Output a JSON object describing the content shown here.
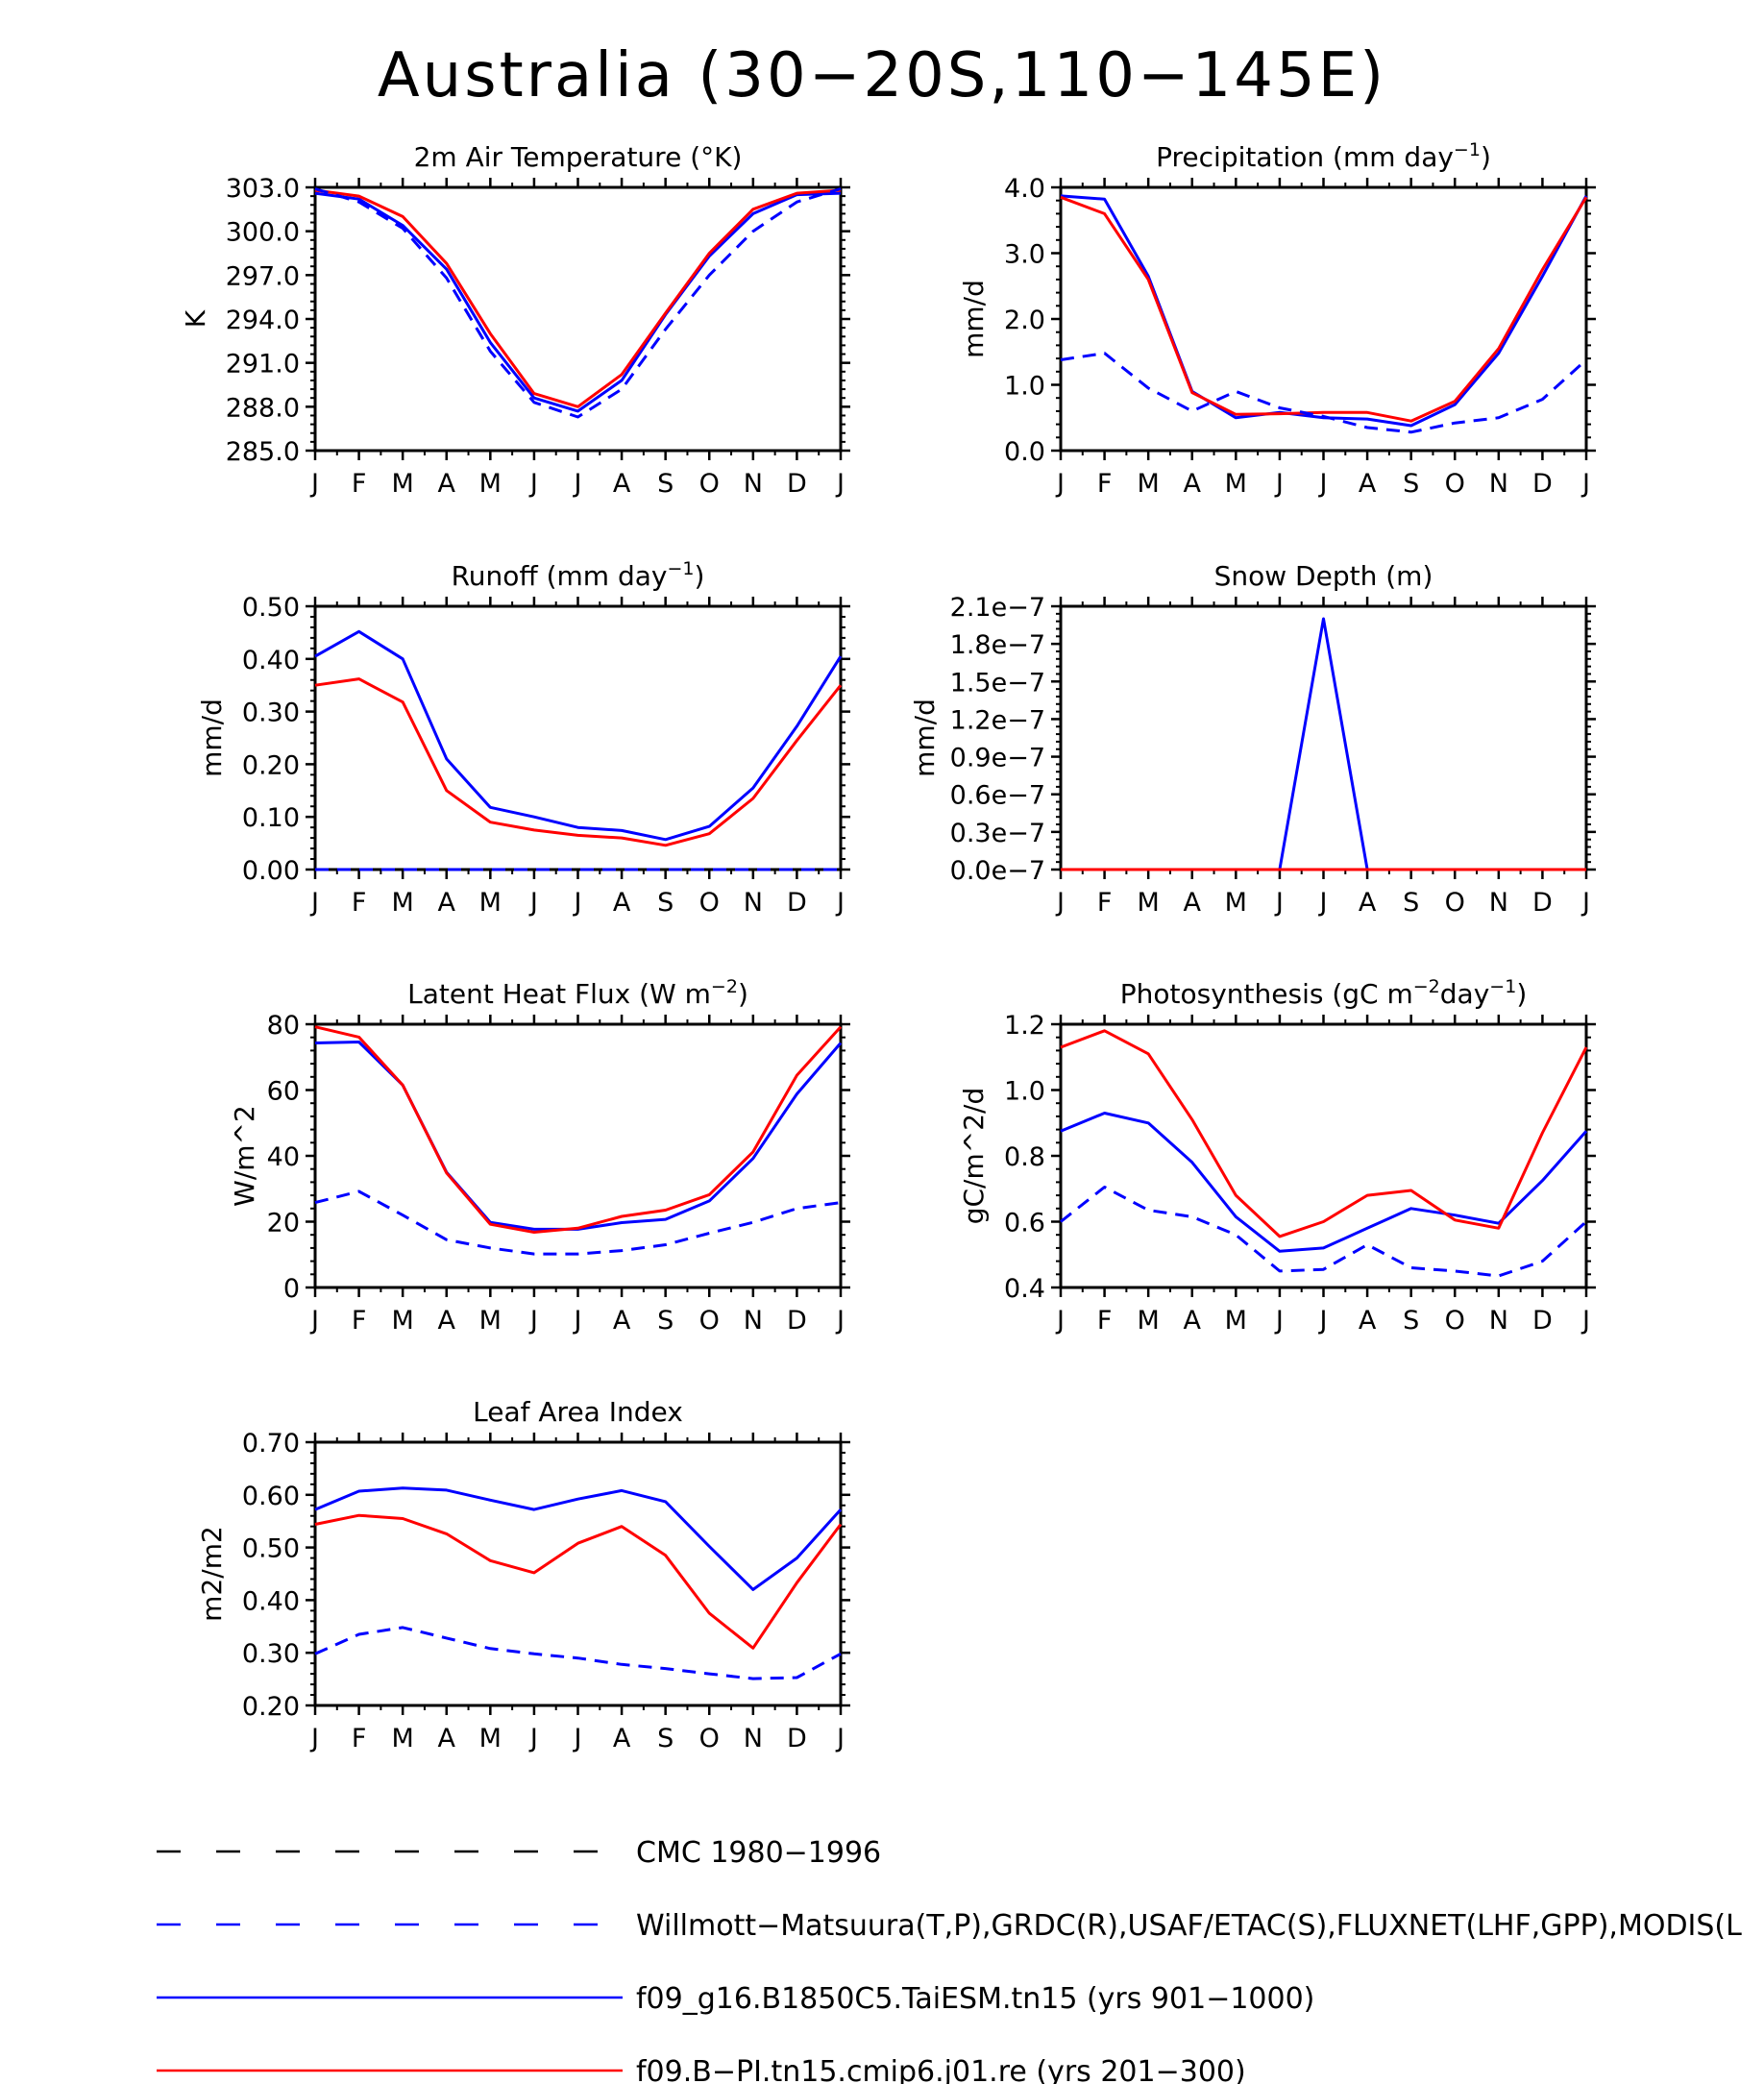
{
  "figure": {
    "title": "Australia (30-20S,110-145E)"
  },
  "colors": {
    "model_1": "#0000ff",
    "model_2": "#ff0000",
    "obs": "#0000ff",
    "cmc": "#000000"
  },
  "legend": {
    "items": [
      {
        "label": "CMC 1980-1996",
        "color": "#000000",
        "dash": true
      },
      {
        "label": "Willmott-Matsuura(T,P),GRDC(R),USAF/ETAC(S),FLUXNET(LHF,GPP),MODIS(L",
        "color": "#0000ff",
        "dash": true
      },
      {
        "label": "f09_g16.B1850C5.TaiESM.tn15 (yrs 901-1000)",
        "color": "#0000ff",
        "dash": false
      },
      {
        "label": "f09.B-PI.tn15.cmip6.j01.re (yrs 201-300)",
        "color": "#ff0000",
        "dash": false
      }
    ]
  },
  "chart_data": [
    {
      "type": "line",
      "title": "2m Air Temperature (°K)",
      "ylabel": "K",
      "x": [
        "J",
        "F",
        "M",
        "A",
        "M",
        "J",
        "J",
        "A",
        "S",
        "O",
        "N",
        "D",
        "J"
      ],
      "ylim": [
        285.0,
        303.0
      ],
      "yticks": [
        "285.0",
        "288.0",
        "291.0",
        "294.0",
        "297.0",
        "300.0",
        "303.0"
      ],
      "series": [
        {
          "name": "f09_g16.B1850C5.TaiESM.tn15 (yrs 901-1000)",
          "color": "#0000ff",
          "dash": false,
          "values": [
            302.6,
            302.2,
            300.4,
            297.4,
            292.4,
            288.6,
            287.7,
            289.8,
            294.3,
            298.3,
            301.2,
            302.5,
            302.6
          ]
        },
        {
          "name": "f09.B-PI.tn15.cmip6.j01.re (yrs 201-300)",
          "color": "#ff0000",
          "dash": false,
          "values": [
            302.8,
            302.4,
            301.0,
            297.8,
            293.0,
            288.9,
            288.0,
            290.2,
            294.4,
            298.5,
            301.5,
            302.6,
            302.8
          ]
        },
        {
          "name": "Willmott-Matsuura(T,P),GRDC(R),USAF/ETAC(S),FLUXNET(LHF,GPP),MODIS(L",
          "color": "#0000ff",
          "dash": true,
          "values": [
            302.9,
            302.0,
            300.2,
            296.8,
            291.8,
            288.3,
            287.3,
            289.2,
            293.3,
            297.0,
            300.0,
            302.0,
            302.9
          ]
        }
      ]
    },
    {
      "type": "line",
      "title": "Precipitation (mm day-1)",
      "ylabel": "mm/d",
      "x": [
        "J",
        "F",
        "M",
        "A",
        "M",
        "J",
        "J",
        "A",
        "S",
        "O",
        "N",
        "D",
        "J"
      ],
      "ylim": [
        0.0,
        4.0
      ],
      "yticks": [
        "0.0",
        "1.0",
        "2.0",
        "3.0",
        "4.0"
      ],
      "series": [
        {
          "name": "f09_g16.B1850C5.TaiESM.tn15 (yrs 901-1000)",
          "color": "#0000ff",
          "dash": false,
          "values": [
            3.87,
            3.82,
            2.65,
            0.9,
            0.5,
            0.58,
            0.5,
            0.48,
            0.38,
            0.7,
            1.48,
            2.65,
            3.87
          ]
        },
        {
          "name": "f09.B-PI.tn15.cmip6.j01.re (yrs 201-300)",
          "color": "#ff0000",
          "dash": false,
          "values": [
            3.85,
            3.6,
            2.6,
            0.88,
            0.55,
            0.56,
            0.58,
            0.58,
            0.45,
            0.75,
            1.55,
            2.75,
            3.85
          ]
        },
        {
          "name": "Willmott-Matsuura(T,P),GRDC(R),USAF/ETAC(S),FLUXNET(LHF,GPP),MODIS(L",
          "color": "#0000ff",
          "dash": true,
          "values": [
            1.38,
            1.48,
            0.95,
            0.6,
            0.9,
            0.65,
            0.52,
            0.35,
            0.28,
            0.42,
            0.5,
            0.78,
            1.38
          ]
        }
      ]
    },
    {
      "type": "line",
      "title": "Runoff (mm day-1)",
      "ylabel": "mm/d",
      "x": [
        "J",
        "F",
        "M",
        "A",
        "M",
        "J",
        "J",
        "A",
        "S",
        "O",
        "N",
        "D",
        "J"
      ],
      "ylim": [
        0.0,
        0.5
      ],
      "yticks": [
        "0.00",
        "0.10",
        "0.20",
        "0.30",
        "0.40",
        "0.50"
      ],
      "series": [
        {
          "name": "f09_g16.B1850C5.TaiESM.tn15 (yrs 901-1000)",
          "color": "#0000ff",
          "dash": false,
          "values": [
            0.405,
            0.452,
            0.4,
            0.21,
            0.118,
            0.1,
            0.08,
            0.074,
            0.057,
            0.082,
            0.155,
            0.272,
            0.405
          ]
        },
        {
          "name": "f09.B-PI.tn15.cmip6.j01.re (yrs 201-300)",
          "color": "#ff0000",
          "dash": false,
          "values": [
            0.35,
            0.362,
            0.318,
            0.15,
            0.09,
            0.075,
            0.065,
            0.06,
            0.046,
            0.068,
            0.135,
            0.245,
            0.35
          ]
        },
        {
          "name": "Willmott-Matsuura(T,P),GRDC(R),USAF/ETAC(S),FLUXNET(LHF,GPP),MODIS(L",
          "color": "#0000ff",
          "dash": true,
          "values": [
            0,
            0,
            0,
            0,
            0,
            0,
            0,
            0,
            0,
            0,
            0,
            0,
            0
          ]
        }
      ]
    },
    {
      "type": "line",
      "title": "Snow Depth (m)",
      "ylabel": "mm/d",
      "x": [
        "J",
        "F",
        "M",
        "A",
        "M",
        "J",
        "J",
        "A",
        "S",
        "O",
        "N",
        "D",
        "J"
      ],
      "ylim": [
        0.0,
        2.1e-07
      ],
      "yticks": [
        "0.0e-7",
        "0.3e-7",
        "0.6e-7",
        "0.9e-7",
        "1.2e-7",
        "1.5e-7",
        "1.8e-7",
        "2.1e-7"
      ],
      "series": [
        {
          "name": "f09_g16.B1850C5.TaiESM.tn15 (yrs 901-1000)",
          "color": "#0000ff",
          "dash": false,
          "values": [
            0,
            0,
            0,
            0,
            0,
            0,
            2e-07,
            0,
            0,
            0,
            0,
            0,
            0
          ]
        },
        {
          "name": "f09.B-PI.tn15.cmip6.j01.re (yrs 201-300)",
          "color": "#ff0000",
          "dash": false,
          "values": [
            0,
            0,
            0,
            0,
            0,
            0,
            0,
            0,
            0,
            0,
            0,
            0,
            0
          ]
        }
      ]
    },
    {
      "type": "line",
      "title": "Latent Heat Flux (W m-2)",
      "ylabel": "W/m^2",
      "x": [
        "J",
        "F",
        "M",
        "A",
        "M",
        "J",
        "J",
        "A",
        "S",
        "O",
        "N",
        "D",
        "J"
      ],
      "ylim": [
        0,
        80
      ],
      "yticks": [
        "0",
        "20",
        "40",
        "60",
        "80"
      ],
      "series": [
        {
          "name": "f09_g16.B1850C5.TaiESM.tn15 (yrs 901-1000)",
          "color": "#0000ff",
          "dash": false,
          "values": [
            74.3,
            74.6,
            61.5,
            35.0,
            19.8,
            17.7,
            17.7,
            19.7,
            20.7,
            26.3,
            39.2,
            58.8,
            74.3
          ]
        },
        {
          "name": "f09.B-PI.tn15.cmip6.j01.re (yrs 201-300)",
          "color": "#ff0000",
          "dash": false,
          "values": [
            79.2,
            76.1,
            61.5,
            34.8,
            19.2,
            16.8,
            18.0,
            21.6,
            23.5,
            28.2,
            41.2,
            64.5,
            79.2
          ]
        },
        {
          "name": "Willmott-Matsuura(T,P),GRDC(R),USAF/ETAC(S),FLUXNET(LHF,GPP),MODIS(L",
          "color": "#0000ff",
          "dash": true,
          "values": [
            25.8,
            29.2,
            22.0,
            14.5,
            12.0,
            10.2,
            10.2,
            11.2,
            13.0,
            16.5,
            19.8,
            24.0,
            25.8
          ]
        }
      ]
    },
    {
      "type": "line",
      "title": "Photosynthesis (gC m-2day-1)",
      "ylabel": "gC/m^2/d",
      "x": [
        "J",
        "F",
        "M",
        "A",
        "M",
        "J",
        "J",
        "A",
        "S",
        "O",
        "N",
        "D",
        "J"
      ],
      "ylim": [
        0.4,
        1.2
      ],
      "yticks": [
        "0.4",
        "0.6",
        "0.8",
        "1.0",
        "1.2"
      ],
      "series": [
        {
          "name": "f09_g16.B1850C5.TaiESM.tn15 (yrs 901-1000)",
          "color": "#0000ff",
          "dash": false,
          "values": [
            0.875,
            0.93,
            0.9,
            0.78,
            0.615,
            0.51,
            0.52,
            0.58,
            0.64,
            0.62,
            0.595,
            0.725,
            0.875
          ]
        },
        {
          "name": "f09.B-PI.tn15.cmip6.j01.re (yrs 201-300)",
          "color": "#ff0000",
          "dash": false,
          "values": [
            1.13,
            1.18,
            1.11,
            0.91,
            0.68,
            0.555,
            0.6,
            0.68,
            0.695,
            0.605,
            0.58,
            0.87,
            1.13
          ]
        },
        {
          "name": "Willmott-Matsuura(T,P),GRDC(R),USAF/ETAC(S),FLUXNET(LHF,GPP),MODIS(L",
          "color": "#0000ff",
          "dash": true,
          "values": [
            0.6,
            0.705,
            0.635,
            0.615,
            0.56,
            0.45,
            0.455,
            0.53,
            0.46,
            0.45,
            0.435,
            0.48,
            0.6
          ]
        }
      ]
    },
    {
      "type": "line",
      "title": "Leaf Area Index",
      "ylabel": "m2/m2",
      "x": [
        "J",
        "F",
        "M",
        "A",
        "M",
        "J",
        "J",
        "A",
        "S",
        "O",
        "N",
        "D",
        "J"
      ],
      "ylim": [
        0.2,
        0.7
      ],
      "yticks": [
        "0.20",
        "0.30",
        "0.40",
        "0.50",
        "0.60",
        "0.70"
      ],
      "series": [
        {
          "name": "f09_g16.B1850C5.TaiESM.tn15 (yrs 901-1000)",
          "color": "#0000ff",
          "dash": false,
          "values": [
            0.572,
            0.607,
            0.613,
            0.609,
            0.59,
            0.572,
            0.592,
            0.608,
            0.587,
            0.502,
            0.42,
            0.48,
            0.572
          ]
        },
        {
          "name": "f09.B-PI.tn15.cmip6.j01.re (yrs 201-300)",
          "color": "#ff0000",
          "dash": false,
          "values": [
            0.544,
            0.561,
            0.555,
            0.526,
            0.475,
            0.452,
            0.508,
            0.54,
            0.485,
            0.375,
            0.309,
            0.433,
            0.544
          ]
        },
        {
          "name": "Willmott-Matsuura(T,P),GRDC(R),USAF/ETAC(S),FLUXNET(LHF,GPP),MODIS(L",
          "color": "#0000ff",
          "dash": true,
          "values": [
            0.298,
            0.335,
            0.348,
            0.328,
            0.308,
            0.298,
            0.29,
            0.278,
            0.27,
            0.26,
            0.251,
            0.253,
            0.298
          ]
        }
      ]
    }
  ]
}
